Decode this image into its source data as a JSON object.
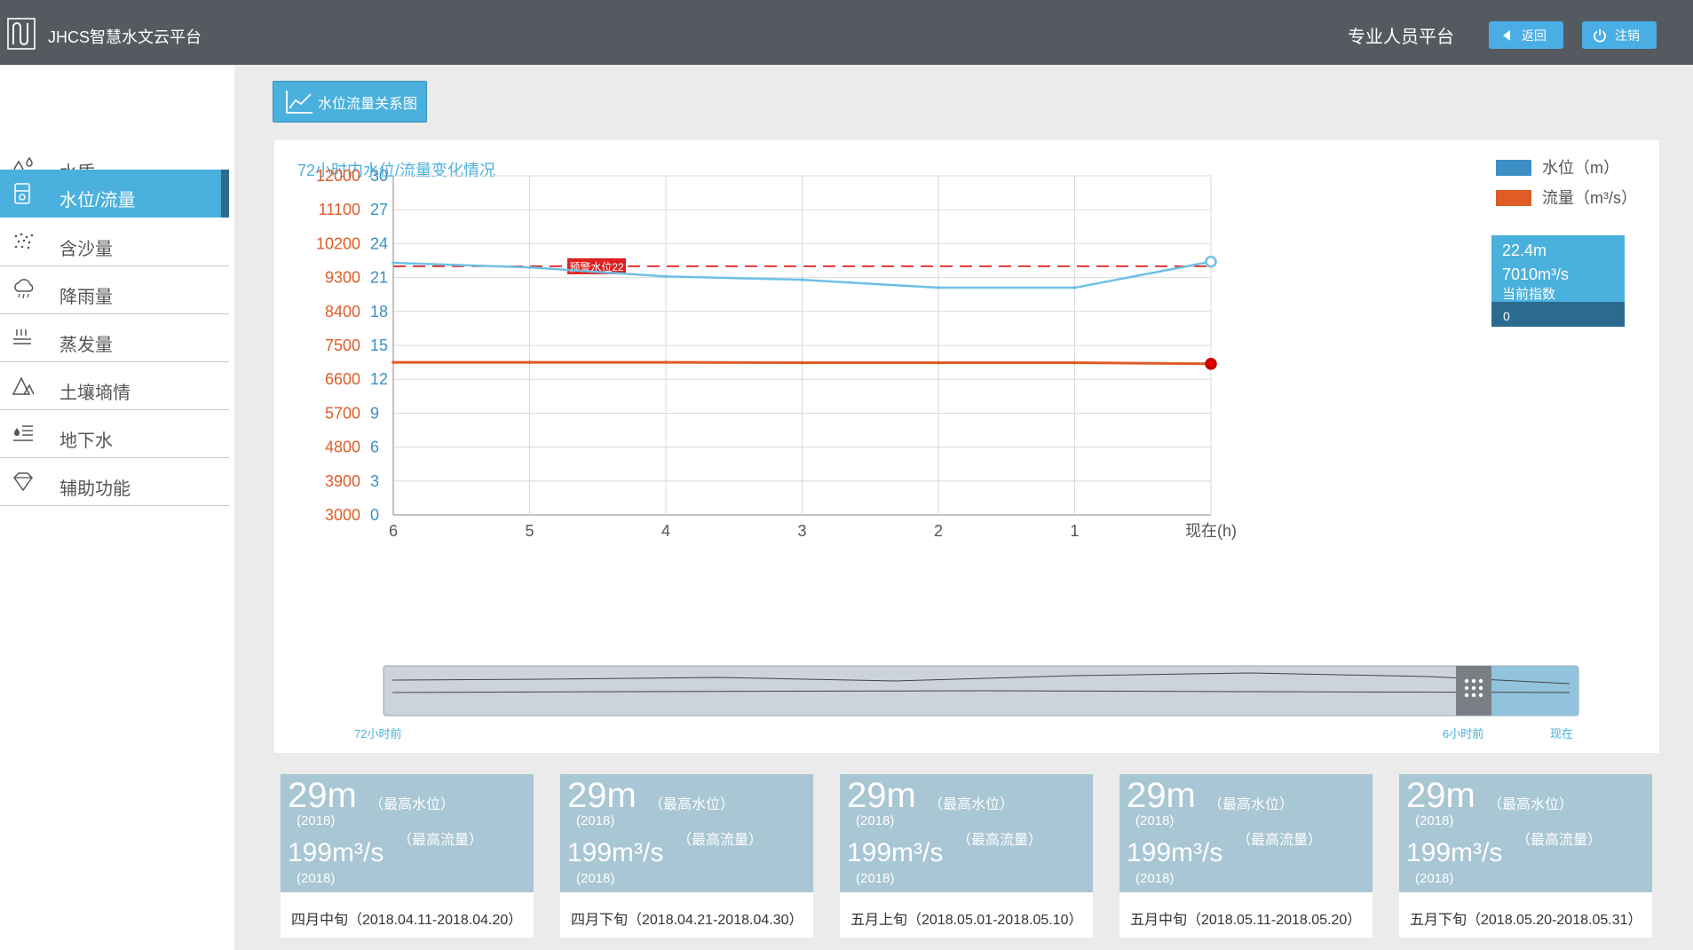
{
  "header": {
    "app_title": "JHCS智慧水文云平台",
    "platform_label": "专业人员平台",
    "back_label": "返回",
    "logout_label": "注销"
  },
  "sidebar": {
    "items": [
      {
        "label": "水质",
        "icon": "drops-icon"
      },
      {
        "label": "水位/流量",
        "icon": "gauge-icon",
        "active": true
      },
      {
        "label": "含沙量",
        "icon": "sand-icon"
      },
      {
        "label": "降雨量",
        "icon": "rain-cloud-icon"
      },
      {
        "label": "蒸发量",
        "icon": "evaporation-icon"
      },
      {
        "label": "土壤墒情",
        "icon": "soil-icon"
      },
      {
        "label": "地下水",
        "icon": "groundwater-icon"
      },
      {
        "label": "辅助功能",
        "icon": "diamond-icon"
      }
    ]
  },
  "tab": {
    "label": "水位流量关系图",
    "icon": "line-chart-icon"
  },
  "chart_data": {
    "type": "line",
    "title": "72小时内水位/流量变化情况",
    "x_categories": [
      "6",
      "5",
      "4",
      "3",
      "2",
      "1",
      "现在(h)"
    ],
    "y_left_ticks": [
      "12000",
      "11100",
      "10200",
      "9300",
      "8400",
      "7500",
      "6600",
      "5700",
      "4800",
      "3900",
      "3000"
    ],
    "y_right_ticks": [
      "30",
      "27",
      "24",
      "21",
      "18",
      "15",
      "12",
      "9",
      "6",
      "3",
      "0"
    ],
    "y_left_range": [
      3000,
      12000
    ],
    "y_right_range": [
      0,
      30
    ],
    "grid": true,
    "legend_position": "top-right",
    "series": [
      {
        "name": "水位（m）",
        "color": "#3b8fc4",
        "line_color": "#6ec0e6",
        "axis": "right",
        "x": [
          6,
          5,
          4,
          3,
          2,
          1,
          0
        ],
        "values": [
          22.3,
          21.9,
          21.1,
          20.8,
          20.1,
          20.1,
          22.4
        ]
      },
      {
        "name": "流量（m³/s）",
        "color": "#e15b26",
        "line_color": "#e15b26",
        "axis": "left",
        "x": [
          6,
          5,
          4,
          3,
          2,
          1,
          0
        ],
        "values": [
          7050,
          7050,
          7050,
          7040,
          7040,
          7040,
          7010
        ]
      }
    ],
    "warning_line": {
      "label": "预警水位22",
      "value": 22,
      "color": "#e02020"
    },
    "tooltip": {
      "level": "22.4m",
      "flow": "7010m³/s",
      "caption": "当前指数",
      "index": "0"
    },
    "range_labels": {
      "start": "72小时前",
      "mid": "6小时前",
      "end": "现在"
    }
  },
  "cards": [
    {
      "level": "29m",
      "level_tag": "（最高水位）",
      "year1": "(2018)",
      "flow": "199m³/s",
      "flow_tag": "（最高流量）",
      "year2": "(2018)",
      "period": "四月中旬（2018.04.11-2018.04.20）"
    },
    {
      "level": "29m",
      "level_tag": "（最高水位）",
      "year1": "(2018)",
      "flow": "199m³/s",
      "flow_tag": "（最高流量）",
      "year2": "(2018)",
      "period": "四月下旬（2018.04.21-2018.04.30）"
    },
    {
      "level": "29m",
      "level_tag": "（最高水位）",
      "year1": "(2018)",
      "flow": "199m³/s",
      "flow_tag": "（最高流量）",
      "year2": "(2018)",
      "period": "五月上旬（2018.05.01-2018.05.10）"
    },
    {
      "level": "29m",
      "level_tag": "（最高水位）",
      "year1": "(2018)",
      "flow": "199m³/s",
      "flow_tag": "（最高流量）",
      "year2": "(2018)",
      "period": "五月中旬（2018.05.11-2018.05.20）"
    },
    {
      "level": "29m",
      "level_tag": "（最高水位）",
      "year1": "(2018)",
      "flow": "199m³/s",
      "flow_tag": "（最高流量）",
      "year2": "(2018)",
      "period": "五月下旬（2018.05.20-2018.05.31）"
    }
  ]
}
